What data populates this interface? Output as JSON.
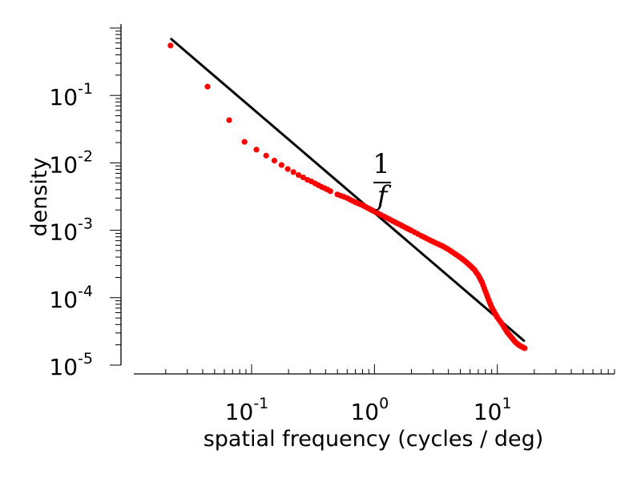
{
  "chart_data": {
    "type": "scatter",
    "xscale": "log",
    "yscale": "log",
    "xlim": [
      0.011,
      90
    ],
    "ylim": [
      1e-05,
      1.0
    ],
    "xlabel": "spatial frequency (cycles / deg)",
    "ylabel": "density",
    "xticks": [
      {
        "base": "10",
        "exp": "-1",
        "value": 0.1
      },
      {
        "base": "10",
        "exp": "0",
        "value": 1
      },
      {
        "base": "10",
        "exp": "1",
        "value": 10
      }
    ],
    "yticks": [
      {
        "base": "10",
        "exp": "-1",
        "value": 0.1
      },
      {
        "base": "10",
        "exp": "-2",
        "value": 0.01
      },
      {
        "base": "10",
        "exp": "-3",
        "value": 0.001
      },
      {
        "base": "10",
        "exp": "-4",
        "value": 0.0001
      },
      {
        "base": "10",
        "exp": "-5",
        "value": 1e-05
      }
    ],
    "grid": false,
    "annotation": {
      "numerator": "1",
      "denominator": "f",
      "x": 1.6,
      "y": 0.0045
    },
    "reference_line": {
      "label": "1/f",
      "color": "#000000",
      "points": [
        {
          "x": 0.0219,
          "y": 0.7
        },
        {
          "x": 16.7,
          "y": 2.25e-05
        }
      ]
    },
    "series": [
      {
        "color": "#ff0000",
        "points": [
          [
            0.0219,
            0.55
          ],
          [
            0.0438,
            0.135
          ],
          [
            0.0657,
            0.043
          ],
          [
            0.0876,
            0.0205
          ],
          [
            0.1095,
            0.0157
          ],
          [
            0.1314,
            0.0128
          ],
          [
            0.1533,
            0.0108
          ],
          [
            0.1752,
            0.0093
          ],
          [
            0.197,
            0.0081
          ],
          [
            0.219,
            0.0073
          ],
          [
            0.241,
            0.0066
          ],
          [
            0.263,
            0.0061
          ],
          [
            0.285,
            0.0056
          ],
          [
            0.307,
            0.0053
          ],
          [
            0.329,
            0.00495
          ],
          [
            0.351,
            0.00465
          ],
          [
            0.372,
            0.0044
          ],
          [
            0.394,
            0.0042
          ],
          [
            0.416,
            0.004
          ],
          [
            0.438,
            0.0038
          ],
          [
            0.5,
            0.0034
          ],
          [
            0.6,
            0.003
          ],
          [
            0.7,
            0.0026
          ],
          [
            0.8,
            0.00235
          ],
          [
            0.9,
            0.0021
          ],
          [
            1.0,
            0.0019
          ],
          [
            1.2,
            0.0016
          ],
          [
            1.4,
            0.00138
          ],
          [
            1.6,
            0.00122
          ],
          [
            1.8,
            0.00109
          ],
          [
            2.0,
            0.00099
          ],
          [
            2.4,
            0.00083
          ],
          [
            2.8,
            0.00072
          ],
          [
            3.2,
            0.00064
          ],
          [
            3.6,
            0.00058
          ],
          [
            4.0,
            0.00052
          ],
          [
            4.5,
            0.00045
          ],
          [
            5.0,
            0.000395
          ],
          [
            5.5,
            0.000345
          ],
          [
            6.0,
            0.0003
          ],
          [
            6.5,
            0.00026
          ],
          [
            7.0,
            0.000215
          ],
          [
            7.5,
            0.00017
          ],
          [
            8.0,
            0.000125
          ],
          [
            8.5,
            9.3e-05
          ],
          [
            9.0,
            7.2e-05
          ],
          [
            9.5,
            6e-05
          ],
          [
            10.0,
            5.1e-05
          ],
          [
            11.0,
            4e-05
          ],
          [
            12.0,
            3.1e-05
          ],
          [
            13.0,
            2.6e-05
          ],
          [
            14.0,
            2.2e-05
          ],
          [
            15.0,
            1.98e-05
          ],
          [
            16.0,
            1.85e-05
          ],
          [
            16.7,
            1.78e-05
          ]
        ]
      }
    ]
  }
}
